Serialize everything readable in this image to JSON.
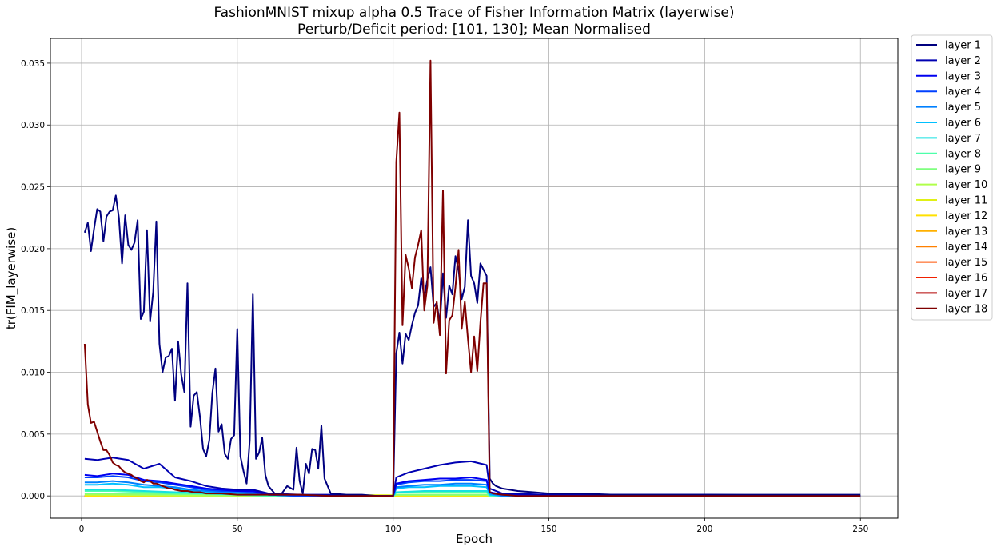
{
  "chart_data": {
    "type": "line",
    "title": "FashionMNIST mixup alpha 0.5 Trace of Fisher Information Matrix (layerwise)",
    "subtitle": "Perturb/Deficit period: [101, 130]; Mean Normalised",
    "xlabel": "Epoch",
    "ylabel": "tr(FIM_layerwise)",
    "xlim": [
      -10,
      262
    ],
    "ylim": [
      -0.0018,
      0.037
    ],
    "xticks": [
      0,
      50,
      100,
      150,
      200,
      250
    ],
    "xtick_labels": [
      "0",
      "50",
      "100",
      "150",
      "200",
      "250"
    ],
    "yticks": [
      0.0,
      0.005,
      0.01,
      0.015,
      0.02,
      0.025,
      0.03,
      0.035
    ],
    "ytick_labels": [
      "0.000",
      "0.005",
      "0.010",
      "0.015",
      "0.020",
      "0.025",
      "0.030",
      "0.035"
    ],
    "grid": true,
    "legend_position": "outside-right-top",
    "series": [
      {
        "name": "layer 1",
        "color": "#00007f",
        "x": [
          1,
          2,
          3,
          4,
          5,
          6,
          7,
          8,
          9,
          10,
          11,
          12,
          13,
          14,
          15,
          16,
          17,
          18,
          19,
          20,
          21,
          22,
          23,
          24,
          25,
          26,
          27,
          28,
          29,
          30,
          31,
          32,
          33,
          34,
          35,
          36,
          37,
          38,
          39,
          40,
          41,
          42,
          43,
          44,
          45,
          46,
          47,
          48,
          49,
          50,
          51,
          52,
          53,
          54,
          55,
          56,
          57,
          58,
          59,
          60,
          62,
          64,
          66,
          68,
          69,
          70,
          71,
          72,
          73,
          74,
          75,
          76,
          77,
          78,
          80,
          85,
          90,
          95,
          100,
          101,
          102,
          103,
          104,
          105,
          106,
          107,
          108,
          109,
          110,
          111,
          112,
          113,
          114,
          115,
          116,
          117,
          118,
          119,
          120,
          121,
          122,
          123,
          124,
          125,
          126,
          127,
          128,
          129,
          130,
          131,
          132,
          133,
          135,
          140,
          145,
          150,
          160,
          170,
          180,
          190,
          200,
          210,
          220,
          230,
          240,
          250
        ],
        "y": [
          0.0213,
          0.0221,
          0.0198,
          0.0216,
          0.0232,
          0.023,
          0.0206,
          0.0226,
          0.023,
          0.0231,
          0.0243,
          0.0225,
          0.0188,
          0.0227,
          0.0203,
          0.0199,
          0.0205,
          0.0223,
          0.0143,
          0.0149,
          0.0215,
          0.0141,
          0.0165,
          0.0222,
          0.0123,
          0.01,
          0.0112,
          0.0113,
          0.0119,
          0.0077,
          0.0125,
          0.0098,
          0.0084,
          0.0172,
          0.0056,
          0.0081,
          0.0084,
          0.0064,
          0.0038,
          0.0032,
          0.0045,
          0.0083,
          0.0103,
          0.0052,
          0.0058,
          0.0034,
          0.003,
          0.0046,
          0.0049,
          0.0135,
          0.0032,
          0.002,
          0.001,
          0.0045,
          0.0163,
          0.003,
          0.0035,
          0.0047,
          0.0017,
          0.0008,
          0.0002,
          0.0001,
          0.0008,
          0.0005,
          0.0039,
          0.0012,
          0.0002,
          0.0026,
          0.0018,
          0.0038,
          0.0037,
          0.0022,
          0.0057,
          0.0014,
          0.0002,
          0.0001,
          0.0001,
          0.0,
          0.0,
          0.0115,
          0.0132,
          0.0107,
          0.0131,
          0.0126,
          0.0138,
          0.0148,
          0.0154,
          0.0176,
          0.0161,
          0.0175,
          0.0185,
          0.0153,
          0.0156,
          0.0139,
          0.018,
          0.0144,
          0.017,
          0.0163,
          0.0194,
          0.0183,
          0.0159,
          0.0169,
          0.0223,
          0.0178,
          0.0172,
          0.0156,
          0.0188,
          0.0183,
          0.0178,
          0.0014,
          0.001,
          0.0008,
          0.0006,
          0.0004,
          0.0003,
          0.0002,
          0.0002,
          0.0001,
          0.0001,
          0.0001,
          0.0001,
          0.0001,
          0.0001,
          0.0001,
          0.0001,
          0.0001
        ]
      },
      {
        "name": "layer 2",
        "color": "#0000b2",
        "x": [
          1,
          5,
          10,
          15,
          20,
          25,
          30,
          35,
          40,
          45,
          50,
          55,
          60,
          70,
          80,
          90,
          100,
          101,
          105,
          110,
          115,
          120,
          125,
          130,
          131,
          135,
          150,
          200,
          250
        ],
        "y": [
          0.003,
          0.0029,
          0.0031,
          0.0029,
          0.0022,
          0.0026,
          0.0015,
          0.0012,
          0.0008,
          0.0006,
          0.0005,
          0.0005,
          0.0002,
          0.0001,
          0.0001,
          0.0,
          0.0,
          0.0015,
          0.0019,
          0.0022,
          0.0025,
          0.0027,
          0.0028,
          0.0025,
          0.0006,
          0.0002,
          0.0001,
          0.0001,
          0.0
        ],
        "values": [
          0.003,
          0.0029,
          0.0031,
          0.0029,
          0.0022,
          0.0026,
          0.0015,
          0.0012,
          0.0008,
          0.0006,
          0.0005,
          0.0005,
          0.0002,
          0.0001,
          0.0001,
          0.0,
          0.0,
          0.0015,
          0.0019,
          0.0022,
          0.0025,
          0.0027,
          0.0028,
          0.0025,
          0.0006,
          0.0002,
          0.0001,
          0.0001,
          0.0
        ]
      },
      {
        "name": "layer 3",
        "color": "#0000f0",
        "x": [
          1,
          5,
          10,
          15,
          20,
          25,
          30,
          35,
          40,
          45,
          50,
          55,
          60,
          70,
          80,
          90,
          100,
          101,
          105,
          110,
          115,
          120,
          125,
          130,
          131,
          135,
          150,
          200,
          250
        ],
        "y": [
          0.0017,
          0.0016,
          0.0018,
          0.0017,
          0.0013,
          0.0012,
          0.001,
          0.0008,
          0.0006,
          0.0005,
          0.0004,
          0.0004,
          0.0001,
          0.0001,
          0.0,
          0.0,
          0.0,
          0.001,
          0.0012,
          0.0013,
          0.0014,
          0.0014,
          0.0015,
          0.0013,
          0.0003,
          0.0001,
          0.0,
          0.0,
          0.0
        ]
      },
      {
        "name": "layer 4",
        "color": "#0040ff",
        "x": [
          1,
          5,
          10,
          15,
          20,
          25,
          30,
          35,
          40,
          45,
          50,
          55,
          60,
          70,
          80,
          90,
          100,
          101,
          105,
          110,
          115,
          120,
          125,
          130,
          131,
          135,
          150,
          200,
          250
        ],
        "y": [
          0.0015,
          0.0015,
          0.0016,
          0.0015,
          0.0012,
          0.0011,
          0.0009,
          0.0007,
          0.0005,
          0.0004,
          0.0004,
          0.0003,
          0.0001,
          0.0,
          0.0,
          0.0,
          0.0,
          0.0009,
          0.0011,
          0.0012,
          0.0012,
          0.0013,
          0.0013,
          0.0012,
          0.0003,
          0.0001,
          0.0,
          0.0,
          0.0
        ]
      },
      {
        "name": "layer 5",
        "color": "#0080ff",
        "x": [
          1,
          5,
          10,
          15,
          20,
          25,
          30,
          35,
          40,
          45,
          50,
          55,
          60,
          70,
          80,
          90,
          100,
          101,
          105,
          110,
          115,
          120,
          125,
          130,
          131,
          135,
          150,
          200,
          250
        ],
        "y": [
          0.0011,
          0.0011,
          0.0012,
          0.0011,
          0.0009,
          0.0008,
          0.0007,
          0.0005,
          0.0004,
          0.0003,
          0.0003,
          0.0002,
          0.0001,
          0.0,
          0.0,
          0.0,
          0.0,
          0.0007,
          0.0008,
          0.0009,
          0.0009,
          0.001,
          0.001,
          0.0009,
          0.0002,
          0.0,
          0.0,
          0.0,
          0.0
        ]
      },
      {
        "name": "layer 6",
        "color": "#00c0ff",
        "x": [
          1,
          5,
          10,
          15,
          20,
          25,
          30,
          35,
          40,
          45,
          50,
          55,
          60,
          70,
          80,
          90,
          100,
          101,
          105,
          110,
          115,
          120,
          125,
          130,
          131,
          135,
          150,
          200,
          250
        ],
        "y": [
          0.0009,
          0.0009,
          0.001,
          0.0009,
          0.0007,
          0.0007,
          0.0006,
          0.0004,
          0.0003,
          0.0003,
          0.0002,
          0.0002,
          0.0001,
          0.0,
          0.0,
          0.0,
          0.0,
          0.0006,
          0.0007,
          0.0007,
          0.0008,
          0.0008,
          0.0008,
          0.0007,
          0.0001,
          0.0,
          0.0,
          0.0,
          0.0
        ]
      },
      {
        "name": "layer 7",
        "color": "#15e0e0",
        "x": [
          1,
          10,
          20,
          30,
          40,
          50,
          60,
          80,
          100,
          101,
          110,
          120,
          130,
          131,
          150,
          200,
          250
        ],
        "y": [
          0.0005,
          0.0005,
          0.0004,
          0.0003,
          0.0002,
          0.0001,
          0.0001,
          0.0,
          0.0,
          0.0003,
          0.0004,
          0.0004,
          0.0004,
          0.0001,
          0.0,
          0.0,
          0.0
        ]
      },
      {
        "name": "layer 8",
        "color": "#4dffaa",
        "x": [
          1,
          10,
          20,
          30,
          40,
          50,
          60,
          80,
          100,
          101,
          110,
          120,
          130,
          131,
          150,
          200,
          250
        ],
        "y": [
          0.0004,
          0.0004,
          0.0003,
          0.0002,
          0.0002,
          0.0001,
          0.0,
          0.0,
          0.0,
          0.0003,
          0.0003,
          0.0003,
          0.0003,
          0.0,
          0.0,
          0.0,
          0.0
        ]
      },
      {
        "name": "layer 9",
        "color": "#7fff7f",
        "x": [
          1,
          50,
          100,
          101,
          130,
          131,
          250
        ],
        "y": [
          0.0002,
          0.0001,
          0.0,
          0.0001,
          0.0001,
          0.0,
          0.0
        ]
      },
      {
        "name": "layer 10",
        "color": "#b0ff4a",
        "x": [
          1,
          50,
          100,
          101,
          130,
          131,
          250
        ],
        "y": [
          0.0001,
          0.0,
          0.0,
          0.0001,
          0.0001,
          0.0,
          0.0
        ]
      },
      {
        "name": "layer 11",
        "color": "#e0f015",
        "x": [
          1,
          250
        ],
        "y": [
          0.0001,
          0.0
        ]
      },
      {
        "name": "layer 12",
        "color": "#ffe000",
        "x": [
          1,
          250
        ],
        "y": [
          0.0,
          0.0
        ]
      },
      {
        "name": "layer 13",
        "color": "#ffb000",
        "x": [
          1,
          250
        ],
        "y": [
          0.0,
          0.0
        ]
      },
      {
        "name": "layer 14",
        "color": "#ff8000",
        "x": [
          1,
          250
        ],
        "y": [
          0.0,
          0.0
        ]
      },
      {
        "name": "layer 15",
        "color": "#ff5000",
        "x": [
          1,
          250
        ],
        "y": [
          0.0,
          0.0
        ]
      },
      {
        "name": "layer 16",
        "color": "#f02000",
        "x": [
          1,
          250
        ],
        "y": [
          0.0,
          0.0
        ]
      },
      {
        "name": "layer 17",
        "color": "#b20000",
        "x": [
          1,
          250
        ],
        "y": [
          0.0,
          0.0
        ]
      },
      {
        "name": "layer 18",
        "color": "#7f0000",
        "x": [
          1,
          2,
          3,
          4,
          5,
          6,
          7,
          8,
          9,
          10,
          11,
          12,
          13,
          14,
          15,
          16,
          17,
          18,
          19,
          20,
          21,
          22,
          23,
          24,
          25,
          26,
          27,
          28,
          29,
          30,
          32,
          34,
          36,
          38,
          40,
          45,
          50,
          55,
          60,
          70,
          80,
          90,
          100,
          101,
          102,
          103,
          104,
          105,
          106,
          107,
          108,
          109,
          110,
          111,
          112,
          113,
          114,
          115,
          116,
          117,
          118,
          119,
          120,
          121,
          122,
          123,
          124,
          125,
          126,
          127,
          128,
          129,
          130,
          131,
          132,
          135,
          140,
          150,
          200,
          250
        ],
        "y": [
          0.0123,
          0.0074,
          0.0059,
          0.006,
          0.0052,
          0.0044,
          0.0037,
          0.0037,
          0.0033,
          0.0027,
          0.0025,
          0.0024,
          0.0021,
          0.0019,
          0.0018,
          0.0017,
          0.0015,
          0.0014,
          0.0012,
          0.0011,
          0.0013,
          0.0012,
          0.001,
          0.001,
          0.0009,
          0.0008,
          0.0007,
          0.0006,
          0.0006,
          0.0005,
          0.0004,
          0.0004,
          0.0003,
          0.0003,
          0.0002,
          0.0002,
          0.0001,
          0.0001,
          0.0001,
          0.0001,
          0.0,
          0.0,
          0.0,
          0.027,
          0.031,
          0.0138,
          0.0195,
          0.0184,
          0.0168,
          0.0193,
          0.0203,
          0.0215,
          0.015,
          0.017,
          0.0352,
          0.014,
          0.0157,
          0.013,
          0.0247,
          0.0099,
          0.0142,
          0.0146,
          0.0169,
          0.0199,
          0.0135,
          0.0157,
          0.0127,
          0.01,
          0.0129,
          0.0101,
          0.014,
          0.0172,
          0.0172,
          0.0003,
          0.0002,
          0.0001,
          0.0,
          0.0,
          0.0,
          0.0
        ]
      }
    ]
  }
}
